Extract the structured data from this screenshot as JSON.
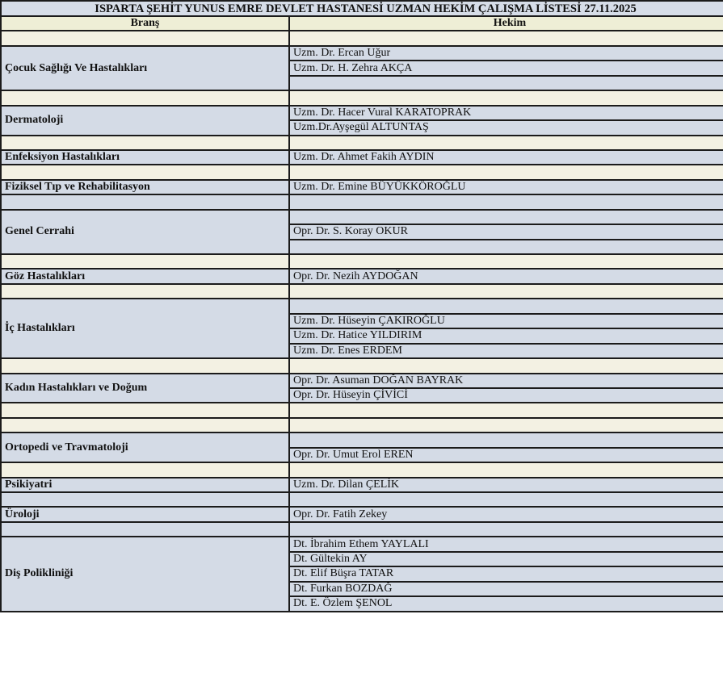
{
  "title": "ISPARTA ŞEHİT YUNUS EMRE DEVLET HASTANESİ UZMAN HEKİM ÇALIŞMA LİSTESİ 27.11.2025",
  "columns": {
    "branch": "Branş",
    "doctor": "Hekim"
  },
  "colors": {
    "blue_row": "#d4dbe6",
    "cream_row": "#f3f1e3",
    "header_row": "#eeeed6",
    "border": "#1b1b1b"
  },
  "rows": [
    {
      "type": "spacer"
    },
    {
      "type": "group",
      "branch": "Çocuk Sağlığı Ve Hastalıkları",
      "doctors": [
        "Uzm. Dr. Ercan Uğur",
        "Uzm. Dr. H. Zehra AKÇA",
        ""
      ]
    },
    {
      "type": "spacer"
    },
    {
      "type": "group",
      "branch": "Dermatoloji",
      "doctors": [
        "Uzm. Dr. Hacer Vural KARATOPRAK",
        "Uzm.Dr.Ayşegül ALTUNTAŞ"
      ]
    },
    {
      "type": "spacer"
    },
    {
      "type": "group",
      "branch": "Enfeksiyon Hastalıkları",
      "doctors": [
        "Uzm. Dr. Ahmet Fakih AYDIN"
      ]
    },
    {
      "type": "spacer"
    },
    {
      "type": "group",
      "branch": "Fiziksel Tıp ve Rehabilitasyon",
      "doctors": [
        "Uzm. Dr. Emine BÜYÜKKÖROĞLU"
      ]
    },
    {
      "type": "blank"
    },
    {
      "type": "group",
      "branch": "Genel Cerrahi",
      "doctors": [
        "",
        "Opr. Dr. S. Koray OKUR",
        ""
      ]
    },
    {
      "type": "spacer"
    },
    {
      "type": "group",
      "branch": "Göz Hastalıkları",
      "doctors": [
        "Opr. Dr. Nezih AYDOĞAN"
      ]
    },
    {
      "type": "spacer"
    },
    {
      "type": "group",
      "branch": "İç Hastalıkları",
      "doctors": [
        "",
        "Uzm. Dr. Hüseyin ÇAKIROĞLU",
        "Uzm. Dr. Hatice YILDIRIM",
        "Uzm. Dr. Enes ERDEM"
      ]
    },
    {
      "type": "spacer"
    },
    {
      "type": "group",
      "branch": "Kadın Hastalıkları ve Doğum",
      "doctors": [
        "Opr. Dr. Asuman DOĞAN BAYRAK",
        "Opr. Dr. Hüseyin ÇİVİCİ"
      ]
    },
    {
      "type": "spacer"
    },
    {
      "type": "spacer"
    },
    {
      "type": "group",
      "branch": "Ortopedi ve Travmatoloji",
      "doctors": [
        "",
        "Opr. Dr. Umut Erol EREN"
      ]
    },
    {
      "type": "spacer"
    },
    {
      "type": "group",
      "branch": "Psikiyatri",
      "doctors": [
        "Uzm. Dr. Dilan ÇELİK"
      ]
    },
    {
      "type": "blank"
    },
    {
      "type": "group",
      "branch": "Üroloji",
      "doctors": [
        "Opr. Dr. Fatih Zekey"
      ]
    },
    {
      "type": "blank"
    },
    {
      "type": "group",
      "branch": "Diş Polikliniği",
      "doctors": [
        "Dt. İbrahim Ethem YAYLALI",
        "Dt. Gültekin AY",
        "Dt. Elif Büşra TATAR",
        "Dt. Furkan BOZDAĞ",
        "Dt. E. Özlem ŞENOL"
      ]
    }
  ]
}
